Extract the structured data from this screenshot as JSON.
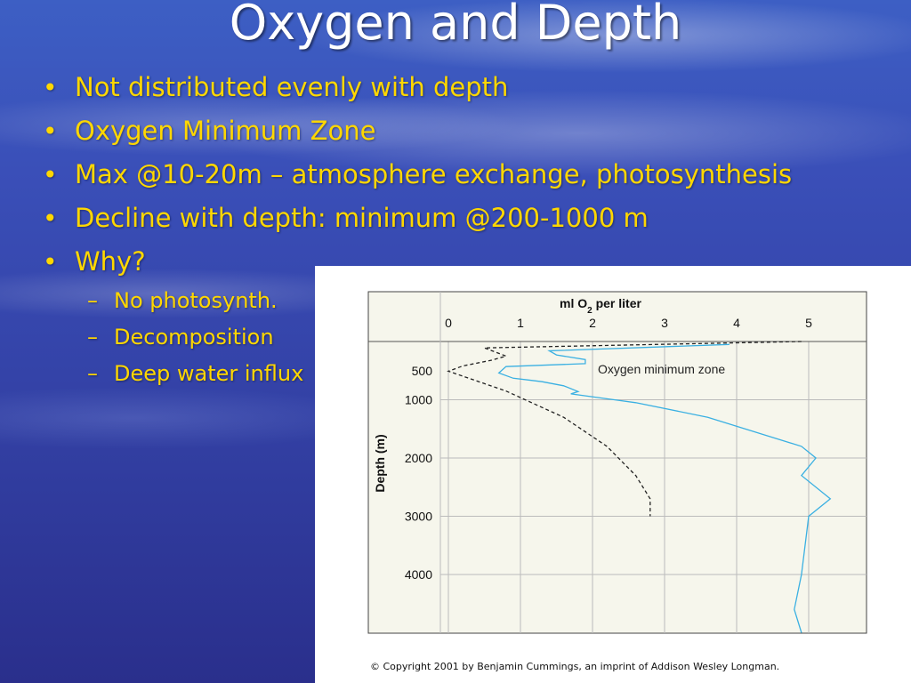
{
  "slide": {
    "title": "Oxygen and Depth",
    "bullets": [
      "Not distributed evenly  with depth",
      "Oxygen Minimum Zone",
      "Max @10-20m – atmosphere exchange, photosynthesis",
      "Decline with depth: minimum @200-1000 m",
      "Why?"
    ],
    "subbullets": [
      "No photosynth.",
      "Decomposition",
      "Deep water influx"
    ],
    "bullet_color": "#ffd700",
    "title_color": "#ffffff"
  },
  "figure": {
    "copyright": "© Copyright 2001 by Benjamin Cummings, an imprint of Addison Wesley Longman."
  },
  "chart_data": {
    "type": "line",
    "title_prefix": "ml O",
    "title_sub": "2",
    "title_suffix": " per liter",
    "ylabel": "Depth (m)",
    "x_ticks": [
      "0",
      "1",
      "2",
      "3",
      "4",
      "5"
    ],
    "y_ticks": [
      "500",
      "1000",
      "2000",
      "3000",
      "4000"
    ],
    "annotation": "Oxygen minimum zone",
    "xlim": [
      0,
      5.8
    ],
    "ylim": [
      0,
      5000
    ],
    "x_axis_position": "top",
    "grid": true,
    "background_color": "#f6f6ec",
    "series": [
      {
        "style": "solid",
        "color": "#3ab0e2",
        "points": [
          [
            3.9,
            50
          ],
          [
            1.4,
            160
          ],
          [
            1.5,
            230
          ],
          [
            1.9,
            310
          ],
          [
            1.9,
            380
          ],
          [
            0.8,
            430
          ],
          [
            0.7,
            540
          ],
          [
            0.9,
            630
          ],
          [
            1.1,
            660
          ],
          [
            1.3,
            690
          ],
          [
            1.6,
            760
          ],
          [
            1.8,
            860
          ],
          [
            1.7,
            900
          ],
          [
            2.3,
            1000
          ],
          [
            2.6,
            1050
          ],
          [
            3.6,
            1300
          ],
          [
            4.9,
            1800
          ],
          [
            5.1,
            2000
          ],
          [
            4.9,
            2300
          ],
          [
            5.3,
            2700
          ],
          [
            5.0,
            3000
          ],
          [
            4.9,
            4000
          ],
          [
            4.8,
            4600
          ],
          [
            4.9,
            5000
          ]
        ]
      },
      {
        "style": "dashed",
        "color": "#222222",
        "points": [
          [
            4.9,
            0
          ],
          [
            0.5,
            110
          ],
          [
            0.8,
            250
          ],
          [
            0.6,
            320
          ],
          [
            0.2,
            420
          ],
          [
            0.0,
            510
          ],
          [
            0.8,
            850
          ],
          [
            1.6,
            1300
          ],
          [
            2.2,
            1800
          ],
          [
            2.6,
            2300
          ],
          [
            2.8,
            2700
          ],
          [
            2.8,
            3000
          ]
        ]
      }
    ]
  }
}
